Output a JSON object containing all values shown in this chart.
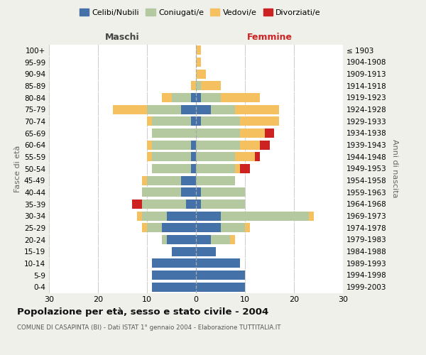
{
  "age_groups": [
    "0-4",
    "5-9",
    "10-14",
    "15-19",
    "20-24",
    "25-29",
    "30-34",
    "35-39",
    "40-44",
    "45-49",
    "50-54",
    "55-59",
    "60-64",
    "65-69",
    "70-74",
    "75-79",
    "80-84",
    "85-89",
    "90-94",
    "95-99",
    "100+"
  ],
  "birth_years": [
    "1999-2003",
    "1994-1998",
    "1989-1993",
    "1984-1988",
    "1979-1983",
    "1974-1978",
    "1969-1973",
    "1964-1968",
    "1959-1963",
    "1954-1958",
    "1949-1953",
    "1944-1948",
    "1939-1943",
    "1934-1938",
    "1929-1933",
    "1924-1928",
    "1919-1923",
    "1914-1918",
    "1909-1913",
    "1904-1908",
    "≤ 1903"
  ],
  "males": {
    "celibe": [
      9,
      9,
      9,
      5,
      6,
      7,
      6,
      2,
      3,
      3,
      1,
      1,
      1,
      0,
      1,
      3,
      1,
      0,
      0,
      0,
      0
    ],
    "coniugato": [
      0,
      0,
      0,
      0,
      1,
      3,
      5,
      9,
      8,
      7,
      8,
      8,
      8,
      9,
      8,
      7,
      4,
      0,
      0,
      0,
      0
    ],
    "vedovo": [
      0,
      0,
      0,
      0,
      0,
      1,
      1,
      0,
      0,
      1,
      0,
      1,
      1,
      0,
      1,
      7,
      2,
      1,
      0,
      0,
      0
    ],
    "divorziato": [
      0,
      0,
      0,
      0,
      0,
      0,
      0,
      2,
      0,
      0,
      0,
      0,
      0,
      0,
      0,
      0,
      0,
      0,
      0,
      0,
      0
    ]
  },
  "females": {
    "nubile": [
      10,
      10,
      9,
      4,
      3,
      5,
      5,
      1,
      1,
      0,
      0,
      0,
      0,
      0,
      1,
      3,
      1,
      0,
      0,
      0,
      0
    ],
    "coniugata": [
      0,
      0,
      0,
      0,
      4,
      5,
      18,
      9,
      9,
      8,
      8,
      8,
      9,
      9,
      8,
      5,
      4,
      1,
      0,
      0,
      0
    ],
    "vedova": [
      0,
      0,
      0,
      0,
      1,
      1,
      1,
      0,
      0,
      0,
      1,
      4,
      4,
      5,
      8,
      9,
      8,
      4,
      2,
      1,
      1
    ],
    "divorziata": [
      0,
      0,
      0,
      0,
      0,
      0,
      0,
      0,
      0,
      0,
      2,
      1,
      2,
      2,
      0,
      0,
      0,
      0,
      0,
      0,
      0
    ]
  },
  "colors": {
    "celibe": "#4472a8",
    "coniugato": "#b5c9a0",
    "vedovo": "#f5c060",
    "divorziato": "#cc2222"
  },
  "legend_labels": [
    "Celibi/Nubili",
    "Coniugati/e",
    "Vedovi/e",
    "Divorziati/e"
  ],
  "legend_colors": [
    "#4472a8",
    "#b5c9a0",
    "#f5c060",
    "#cc2222"
  ],
  "xlim": 30,
  "title": "Popolazione per età, sesso e stato civile - 2004",
  "subtitle": "COMUNE DI CASAPINTA (BI) - Dati ISTAT 1° gennaio 2004 - Elaborazione TUTTITALIA.IT",
  "xlabel_left": "Maschi",
  "xlabel_right": "Femmine",
  "ylabel_left": "Fasce di età",
  "ylabel_right": "Anni di nascita",
  "bg_color": "#f0f0eb",
  "plot_bg": "#ffffff",
  "grid_color": "#cccccc"
}
